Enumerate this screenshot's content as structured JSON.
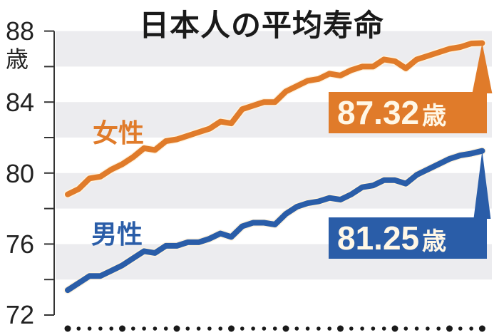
{
  "title": "日本人の平均寿命",
  "y_axis": {
    "unit_label": "歳",
    "ticks": [
      "88",
      "84",
      "80",
      "76",
      "72"
    ]
  },
  "series_labels": {
    "female": "女性",
    "male": "男性"
  },
  "callouts": {
    "female": {
      "value": "87.32",
      "unit": "歳"
    },
    "male": {
      "value": "81.25",
      "unit": "歳"
    }
  },
  "colors": {
    "female": "#e07b2a",
    "male": "#2a5da8",
    "band": "#ececef",
    "axis": "#333333"
  },
  "chart_data": {
    "type": "line",
    "title": "日本人の平均寿命",
    "xlabel": "",
    "ylabel": "歳",
    "ylim": [
      72,
      88
    ],
    "yticks": [
      72,
      76,
      80,
      84,
      88
    ],
    "grid": "alternating horizontal bands every 2 years (74-76, 78-80, 82-84, 86-88 shaded)",
    "x_axis_note": "dot markers per year; larger dot every 5th year; no tick labels shown",
    "x": [
      1,
      2,
      3,
      4,
      5,
      6,
      7,
      8,
      9,
      10,
      11,
      12,
      13,
      14,
      15,
      16,
      17,
      18,
      19,
      20,
      21,
      22,
      23,
      24,
      25,
      26,
      27,
      28,
      29,
      30,
      31,
      32,
      33,
      34,
      35,
      36,
      37,
      38,
      39
    ],
    "series": [
      {
        "name": "女性",
        "color": "#e07b2a",
        "values": [
          78.8,
          79.1,
          79.7,
          79.8,
          80.2,
          80.5,
          80.9,
          81.4,
          81.3,
          81.8,
          81.9,
          82.1,
          82.3,
          82.5,
          82.9,
          82.8,
          83.6,
          83.8,
          84.0,
          84.0,
          84.6,
          84.9,
          85.2,
          85.3,
          85.6,
          85.5,
          85.8,
          86.0,
          86.0,
          86.4,
          86.3,
          85.9,
          86.4,
          86.6,
          86.8,
          87.0,
          87.1,
          87.3,
          87.32
        ]
      },
      {
        "name": "男性",
        "color": "#2a5da8",
        "values": [
          73.4,
          73.8,
          74.2,
          74.2,
          74.5,
          74.8,
          75.2,
          75.6,
          75.5,
          75.9,
          75.9,
          76.1,
          76.1,
          76.3,
          76.6,
          76.4,
          77.0,
          77.2,
          77.2,
          77.1,
          77.7,
          78.1,
          78.3,
          78.4,
          78.6,
          78.5,
          78.8,
          79.2,
          79.3,
          79.6,
          79.6,
          79.4,
          79.9,
          80.2,
          80.5,
          80.8,
          81.0,
          81.1,
          81.25
        ]
      }
    ],
    "annotations": [
      {
        "series": "女性",
        "text": "87.32歳",
        "at_index": 38
      },
      {
        "series": "男性",
        "text": "81.25歳",
        "at_index": 38
      }
    ],
    "legend": "inline labels: 女性 (orange) near upper-left of line, 男性 (blue) near lower-left"
  }
}
